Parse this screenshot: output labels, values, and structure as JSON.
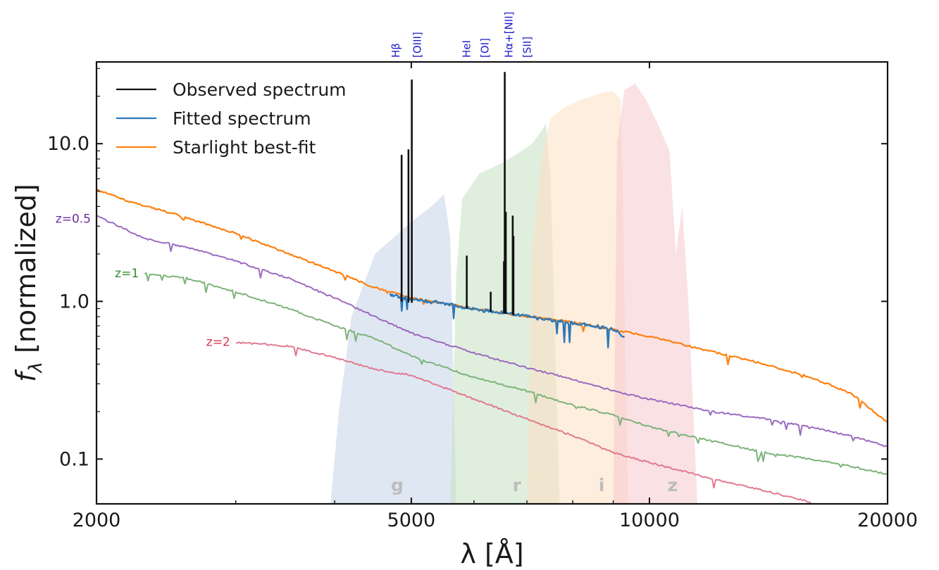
{
  "chart_data": {
    "type": "line",
    "xscale": "log",
    "yscale": "log",
    "xlim": [
      2000,
      20000
    ],
    "ylim": [
      0.052,
      33
    ],
    "xlabel": "λ [Å]",
    "ylabel": "fλ [normalized]",
    "ylabel_main": "f",
    "ylabel_sub": "λ",
    "ylabel_rest": " [normalized]",
    "xticks": [
      {
        "value": 2000,
        "label": "2000"
      },
      {
        "value": 5000,
        "label": "5000"
      },
      {
        "value": 10000,
        "label": "10000"
      },
      {
        "value": 20000,
        "label": "20000"
      }
    ],
    "yticks": [
      {
        "value": 0.1,
        "label": "0.1"
      },
      {
        "value": 1.0,
        "label": "1.0"
      },
      {
        "value": 10.0,
        "label": "10.0"
      }
    ],
    "legend": {
      "position": "top-left",
      "entries": [
        {
          "label": "Observed spectrum",
          "color": "#111111"
        },
        {
          "label": "Fitted spectrum",
          "color": "#2f78b5"
        },
        {
          "label": "Starlight best-fit",
          "color": "#ff7f0e"
        }
      ]
    },
    "filters": [
      {
        "name": "g",
        "color": "#c5d3e8",
        "label_x": 4800,
        "points": [
          [
            3950,
            0.05
          ],
          [
            4050,
            0.2
          ],
          [
            4200,
            0.8
          ],
          [
            4500,
            2.0
          ],
          [
            5000,
            3.2
          ],
          [
            5300,
            4.0
          ],
          [
            5500,
            4.8
          ],
          [
            5600,
            2.5
          ],
          [
            5700,
            0.05
          ]
        ]
      },
      {
        "name": "r",
        "color": "#c6e0c3",
        "label_x": 6800,
        "points": [
          [
            5600,
            0.05
          ],
          [
            5700,
            1.5
          ],
          [
            5800,
            4.5
          ],
          [
            6100,
            6.5
          ],
          [
            6500,
            7.5
          ],
          [
            6900,
            9.0
          ],
          [
            7100,
            10.0
          ],
          [
            7300,
            12.0
          ],
          [
            7400,
            13.5
          ],
          [
            7500,
            6.0
          ],
          [
            7700,
            0.05
          ]
        ]
      },
      {
        "name": "i",
        "color": "#fde0c2",
        "label_x": 8700,
        "points": [
          [
            7000,
            0.05
          ],
          [
            7100,
            2.0
          ],
          [
            7300,
            8.0
          ],
          [
            7500,
            14.5
          ],
          [
            7800,
            17.0
          ],
          [
            8200,
            19.0
          ],
          [
            8700,
            21.0
          ],
          [
            9000,
            21.5
          ],
          [
            9200,
            19.0
          ],
          [
            9400,
            0.05
          ]
        ]
      },
      {
        "name": "z",
        "color": "#f5c8cd",
        "label_x": 10700,
        "points": [
          [
            9000,
            0.05
          ],
          [
            9100,
            10.0
          ],
          [
            9300,
            22.0
          ],
          [
            9600,
            24.0
          ],
          [
            9900,
            19.0
          ],
          [
            10200,
            14.0
          ],
          [
            10600,
            9.0
          ],
          [
            10800,
            2.0
          ],
          [
            11000,
            4.0
          ],
          [
            11200,
            1.0
          ],
          [
            11500,
            0.05
          ]
        ]
      }
    ],
    "emission_lines": [
      {
        "label": "Hβ",
        "wavelength": 4861
      },
      {
        "label": "[OIII]",
        "wavelength": 5007
      },
      {
        "label": "HeI",
        "wavelength": 5876
      },
      {
        "label": "[OI]",
        "wavelength": 6300
      },
      {
        "label": "Hα+[NII]",
        "wavelength": 6563
      },
      {
        "label": "[SII]",
        "wavelength": 6724
      }
    ],
    "series": [
      {
        "name": "Starlight best-fit",
        "color": "#ff7f0e",
        "points": [
          [
            2000,
            5.1
          ],
          [
            2200,
            4.3
          ],
          [
            2500,
            3.6
          ],
          [
            3000,
            2.7
          ],
          [
            3500,
            2.0
          ],
          [
            4000,
            1.55
          ],
          [
            4500,
            1.22
          ],
          [
            5000,
            1.05
          ],
          [
            6000,
            0.9
          ],
          [
            7000,
            0.8
          ],
          [
            8000,
            0.74
          ],
          [
            9000,
            0.66
          ],
          [
            10000,
            0.6
          ],
          [
            12000,
            0.48
          ],
          [
            14000,
            0.4
          ],
          [
            16000,
            0.33
          ],
          [
            18000,
            0.26
          ],
          [
            20000,
            0.17
          ]
        ]
      },
      {
        "name": "Fitted spectrum",
        "color": "#2f78b5",
        "points": [
          [
            4700,
            1.1
          ],
          [
            5000,
            1.03
          ],
          [
            5500,
            0.97
          ],
          [
            6000,
            0.89
          ],
          [
            6500,
            0.85
          ],
          [
            7000,
            0.8
          ],
          [
            7500,
            0.76
          ],
          [
            8000,
            0.73
          ],
          [
            8500,
            0.7
          ],
          [
            9000,
            0.66
          ],
          [
            9300,
            0.6
          ]
        ]
      },
      {
        "name": "z=0.5",
        "label": "z=0.5",
        "color": "#9b6bbf",
        "label_color": "#6a2ea0",
        "points": [
          [
            2000,
            3.5
          ],
          [
            2300,
            2.5
          ],
          [
            2600,
            2.2
          ],
          [
            3000,
            1.8
          ],
          [
            3500,
            1.4
          ],
          [
            4000,
            1.05
          ],
          [
            4500,
            0.8
          ],
          [
            5000,
            0.63
          ],
          [
            6000,
            0.47
          ],
          [
            7000,
            0.38
          ],
          [
            8000,
            0.32
          ],
          [
            9000,
            0.27
          ],
          [
            10000,
            0.24
          ],
          [
            12000,
            0.2
          ],
          [
            14000,
            0.18
          ],
          [
            16000,
            0.16
          ],
          [
            18000,
            0.14
          ],
          [
            20000,
            0.12
          ]
        ]
      },
      {
        "name": "z=1",
        "label": "z=1",
        "color": "#7db37a",
        "label_color": "#2e8b2e",
        "points": [
          [
            2300,
            1.5
          ],
          [
            2600,
            1.4
          ],
          [
            3000,
            1.15
          ],
          [
            3500,
            0.9
          ],
          [
            4000,
            0.7
          ],
          [
            4500,
            0.58
          ],
          [
            5000,
            0.45
          ],
          [
            6000,
            0.33
          ],
          [
            7000,
            0.27
          ],
          [
            8000,
            0.22
          ],
          [
            9000,
            0.19
          ],
          [
            10000,
            0.16
          ],
          [
            12000,
            0.13
          ],
          [
            14000,
            0.11
          ],
          [
            16000,
            0.1
          ],
          [
            18000,
            0.09
          ],
          [
            20000,
            0.08
          ]
        ]
      },
      {
        "name": "z=2",
        "label": "z=2",
        "color": "#e07a90",
        "label_color": "#d9344f",
        "points": [
          [
            3000,
            0.55
          ],
          [
            3500,
            0.52
          ],
          [
            4000,
            0.44
          ],
          [
            4500,
            0.37
          ],
          [
            5000,
            0.34
          ],
          [
            6000,
            0.24
          ],
          [
            7000,
            0.18
          ],
          [
            8000,
            0.14
          ],
          [
            9000,
            0.11
          ],
          [
            10000,
            0.095
          ],
          [
            12000,
            0.075
          ],
          [
            14000,
            0.063
          ],
          [
            16000,
            0.053
          ]
        ]
      }
    ],
    "observed_spectrum": {
      "color": "#111111",
      "continuum": [
        [
          4850,
          1.0
        ],
        [
          5000,
          0.98
        ],
        [
          5500,
          0.95
        ],
        [
          6000,
          0.88
        ],
        [
          6500,
          0.84
        ],
        [
          7000,
          0.8
        ],
        [
          7500,
          0.76
        ],
        [
          8000,
          0.73
        ],
        [
          8500,
          0.7
        ],
        [
          9000,
          0.66
        ],
        [
          9300,
          0.6
        ]
      ],
      "spikes": [
        {
          "wavelength": 4861,
          "peak": 8.5
        },
        {
          "wavelength": 4959,
          "peak": 9.2
        },
        {
          "wavelength": 5007,
          "peak": 25.5
        },
        {
          "wavelength": 5876,
          "peak": 1.95
        },
        {
          "wavelength": 6300,
          "peak": 1.15
        },
        {
          "wavelength": 6548,
          "peak": 1.8
        },
        {
          "wavelength": 6563,
          "peak": 28.5
        },
        {
          "wavelength": 6583,
          "peak": 3.7
        },
        {
          "wavelength": 6717,
          "peak": 3.5
        },
        {
          "wavelength": 6731,
          "peak": 2.6
        }
      ]
    }
  }
}
